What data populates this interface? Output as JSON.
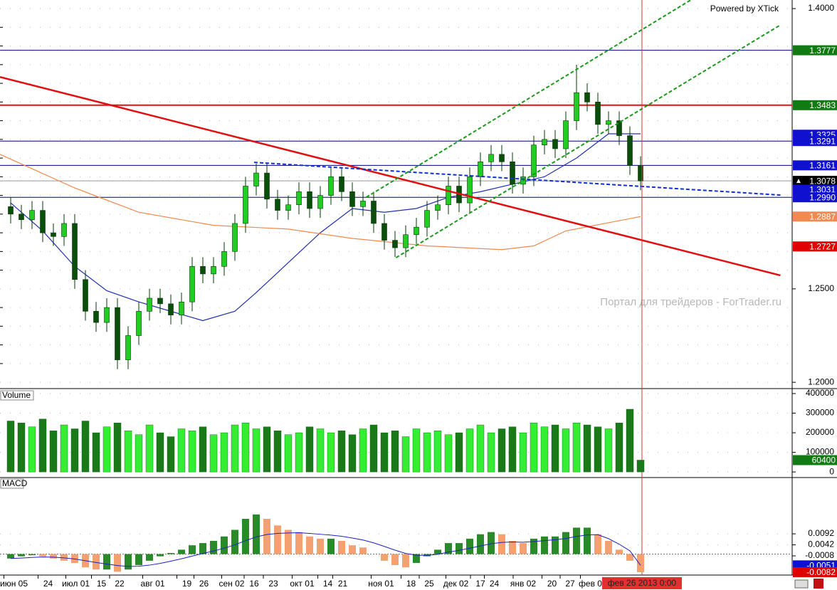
{
  "chart_data": [
    {
      "type": "candlestick",
      "panel": "price",
      "annotations": [
        "Powered by XTick",
        "Портал для трейдеров - ForTrader.ru"
      ],
      "ylim": [
        1.197,
        1.4046
      ],
      "yticks": [
        {
          "value": 1.2,
          "label": "1.2000"
        },
        {
          "value": 1.25,
          "label": "1.2500"
        },
        {
          "value": 1.4,
          "label": "1.4000"
        }
      ],
      "grid_ticks": [
        1.21,
        1.22,
        1.23,
        1.24,
        1.26,
        1.27,
        1.28,
        1.29,
        1.3,
        1.31,
        1.32,
        1.33,
        1.34,
        1.35,
        1.36,
        1.37,
        1.38,
        1.39
      ],
      "xticks": [
        {
          "value": 0.3,
          "label": "июн 05"
        },
        {
          "value": 3.5,
          "label": "24"
        },
        {
          "value": 6.1,
          "label": "июл 01"
        },
        {
          "value": 8.5,
          "label": "15"
        },
        {
          "value": 10.2,
          "label": "22"
        },
        {
          "value": 13.3,
          "label": "авг 01"
        },
        {
          "value": 16.5,
          "label": "19"
        },
        {
          "value": 18.1,
          "label": "26"
        },
        {
          "value": 20.7,
          "label": "сен 02"
        },
        {
          "value": 22.8,
          "label": "16"
        },
        {
          "value": 24.6,
          "label": "23"
        },
        {
          "value": 27.3,
          "label": "окт 01"
        },
        {
          "value": 29.7,
          "label": "14"
        },
        {
          "value": 31.1,
          "label": "21"
        },
        {
          "value": 34.7,
          "label": "ноя 01"
        },
        {
          "value": 37.5,
          "label": "18"
        },
        {
          "value": 39.2,
          "label": "25"
        },
        {
          "value": 41.7,
          "label": "дек 02"
        },
        {
          "value": 44,
          "label": "17"
        },
        {
          "value": 45.3,
          "label": "24"
        },
        {
          "value": 48,
          "label": "янв 02"
        },
        {
          "value": 50.7,
          "label": "20"
        },
        {
          "value": 52.4,
          "label": "27"
        },
        {
          "value": 54.3,
          "label": "фев 0"
        }
      ],
      "cursor": {
        "x": 59.13,
        "label": "фев 26 2013 0:00",
        "color": "#e03030"
      },
      "open": [
        1.294,
        1.29,
        1.287,
        1.292,
        1.28,
        1.278,
        1.285,
        1.255,
        1.238,
        1.232,
        1.24,
        1.212,
        1.225,
        1.238,
        1.245,
        1.242,
        1.236,
        1.243,
        1.262,
        1.258,
        1.262,
        1.27,
        1.285,
        1.305,
        1.312,
        1.298,
        1.292,
        1.295,
        1.302,
        1.293,
        1.3,
        1.31,
        1.302,
        1.294,
        1.297,
        1.285,
        1.276,
        1.272,
        1.279,
        1.283,
        1.292,
        1.295,
        1.305,
        1.296,
        1.31,
        1.318,
        1.322,
        1.318,
        1.306,
        1.31,
        1.327,
        1.33,
        1.325,
        1.34,
        1.355,
        1.35,
        1.338,
        1.34,
        1.332,
        1.316
      ],
      "high": [
        1.299,
        1.295,
        1.297,
        1.297,
        1.285,
        1.29,
        1.29,
        1.26,
        1.243,
        1.245,
        1.245,
        1.23,
        1.243,
        1.25,
        1.25,
        1.247,
        1.248,
        1.267,
        1.267,
        1.267,
        1.275,
        1.29,
        1.31,
        1.317,
        1.317,
        1.303,
        1.3,
        1.307,
        1.307,
        1.305,
        1.315,
        1.315,
        1.307,
        1.302,
        1.302,
        1.29,
        1.281,
        1.284,
        1.288,
        1.297,
        1.3,
        1.31,
        1.31,
        1.315,
        1.323,
        1.327,
        1.327,
        1.323,
        1.315,
        1.332,
        1.335,
        1.335,
        1.345,
        1.37,
        1.36,
        1.355,
        1.345,
        1.345,
        1.337,
        1.321
      ],
      "low": [
        1.285,
        1.282,
        1.282,
        1.275,
        1.273,
        1.273,
        1.25,
        1.233,
        1.227,
        1.227,
        1.207,
        1.207,
        1.22,
        1.233,
        1.237,
        1.231,
        1.231,
        1.238,
        1.253,
        1.253,
        1.257,
        1.265,
        1.28,
        1.3,
        1.293,
        1.287,
        1.287,
        1.29,
        1.288,
        1.288,
        1.295,
        1.297,
        1.289,
        1.289,
        1.28,
        1.271,
        1.267,
        1.267,
        1.274,
        1.278,
        1.287,
        1.29,
        1.291,
        1.291,
        1.305,
        1.313,
        1.313,
        1.301,
        1.301,
        1.305,
        1.322,
        1.32,
        1.32,
        1.335,
        1.345,
        1.333,
        1.333,
        1.327,
        1.311,
        1.3028
      ],
      "close": [
        1.29,
        1.287,
        1.292,
        1.28,
        1.278,
        1.285,
        1.255,
        1.238,
        1.232,
        1.24,
        1.212,
        1.225,
        1.238,
        1.245,
        1.242,
        1.236,
        1.243,
        1.262,
        1.258,
        1.262,
        1.27,
        1.285,
        1.305,
        1.312,
        1.298,
        1.292,
        1.295,
        1.302,
        1.293,
        1.3,
        1.31,
        1.302,
        1.294,
        1.297,
        1.285,
        1.276,
        1.272,
        1.279,
        1.283,
        1.292,
        1.295,
        1.305,
        1.296,
        1.31,
        1.318,
        1.322,
        1.318,
        1.306,
        1.31,
        1.327,
        1.33,
        1.325,
        1.34,
        1.355,
        1.35,
        1.338,
        1.34,
        1.332,
        1.316,
        1.3078
      ],
      "up_color": "#22cc22",
      "down_color": "#0b4d0b",
      "overlays": [
        {
          "color": "#2030b0",
          "x": [
            0,
            3,
            6,
            9,
            12,
            15,
            18,
            21,
            23,
            26,
            29,
            32,
            35,
            38,
            41,
            44,
            47,
            50,
            53,
            56,
            59
          ],
          "values": [
            1.296,
            1.281,
            1.262,
            1.249,
            1.243,
            1.238,
            1.233,
            1.238,
            1.248,
            1.264,
            1.28,
            1.293,
            1.291,
            1.293,
            1.299,
            1.302,
            1.306,
            1.31,
            1.32,
            1.333,
            1.333
          ]
        },
        {
          "color": "#f08a50",
          "x": [
            -1,
            6,
            12,
            19,
            26,
            32,
            39,
            46,
            49,
            52,
            59
          ],
          "values": [
            1.322,
            1.304,
            1.291,
            1.284,
            1.282,
            1.277,
            1.273,
            1.271,
            1.273,
            1.281,
            1.2887
          ]
        }
      ],
      "trendlines": [
        {
          "color": "#e01010",
          "dash": false,
          "x": [
            -1,
            72.1
          ],
          "values": [
            1.3634,
            1.2572
          ]
        },
        {
          "color": "#1030d0",
          "dash": true,
          "x": [
            22.8,
            72.1
          ],
          "values": [
            1.3177,
            1.3002
          ]
        },
        {
          "color": "#1a9a1a",
          "dash": true,
          "x": [
            36.1,
            72
          ],
          "values": [
            1.2667,
            1.3909
          ]
        },
        {
          "color": "#1a9a1a",
          "dash": true,
          "x": [
            33.3,
            63.7
          ],
          "values": [
            1.299,
            1.4046
          ]
        }
      ],
      "markers": [
        {
          "value": 1.3777,
          "color": "#127a12",
          "line_color": "#000080"
        },
        {
          "value": 1.3483,
          "color": "#127a12",
          "line_color": "#e01010"
        },
        {
          "value": 1.3325,
          "color": "#1010d0"
        },
        {
          "value": 1.3291,
          "color": "#1010d0",
          "line_color": "#000080"
        },
        {
          "value": 1.3161,
          "color": "#1010d0",
          "line_color": "#000080"
        },
        {
          "value": 1.3078,
          "color": "#000000",
          "line_color": "#999999"
        },
        {
          "value": 1.3031,
          "color": "#1010d0"
        },
        {
          "value": 1.299,
          "label": "1.2990",
          "color": "#1010d0",
          "line_color": "#000080"
        },
        {
          "value": 1.2887,
          "color": "#f08a50"
        },
        {
          "value": 1.2727,
          "color": "#e00000"
        }
      ]
    },
    {
      "type": "bar",
      "panel": "volume",
      "title": "Volume",
      "ylim": [
        -25000,
        418000
      ],
      "yticks": [
        0,
        100000,
        200000,
        300000,
        400000
      ],
      "values": [
        260000,
        250000,
        230000,
        270000,
        210000,
        240000,
        220000,
        260000,
        200000,
        230000,
        250000,
        210000,
        190000,
        240000,
        200000,
        180000,
        220000,
        210000,
        230000,
        190000,
        200000,
        240000,
        250000,
        220000,
        230000,
        210000,
        190000,
        200000,
        230000,
        220000,
        200000,
        210000,
        190000,
        220000,
        240000,
        200000,
        210000,
        180000,
        220000,
        200000,
        210000,
        190000,
        200000,
        220000,
        240000,
        200000,
        220000,
        230000,
        200000,
        250000,
        230000,
        240000,
        220000,
        250000,
        240000,
        230000,
        220000,
        250000,
        320000,
        60400
      ],
      "markers": [
        {
          "value": 60400,
          "color": "#127a12"
        }
      ]
    },
    {
      "type": "macd",
      "panel": "macd",
      "title": "MACD",
      "ylim": [
        -0.0095,
        0.0344
      ],
      "yticks": [
        -0.0008,
        0.0042,
        0.0092
      ],
      "up_color": "#2a8a2a",
      "down_color": "#f4a070",
      "signal_color": "#2020c0",
      "values": [
        -0.002,
        -0.001,
        -0.0005,
        -0.001,
        -0.002,
        -0.003,
        -0.004,
        -0.006,
        -0.007,
        -0.007,
        -0.008,
        -0.007,
        -0.005,
        -0.003,
        -0.001,
        0.0005,
        0.002,
        0.004,
        0.005,
        0.006,
        0.008,
        0.011,
        0.016,
        0.018,
        0.016,
        0.013,
        0.011,
        0.01,
        0.008,
        0.007,
        0.007,
        0.006,
        0.004,
        0.003,
        0.0,
        -0.003,
        -0.005,
        -0.006,
        -0.004,
        -0.001,
        0.002,
        0.005,
        0.005,
        0.007,
        0.009,
        0.01,
        0.009,
        0.006,
        0.005,
        0.007,
        0.008,
        0.008,
        0.01,
        0.012,
        0.012,
        0.009,
        0.006,
        0.002,
        -0.003,
        -0.0082
      ],
      "signal": [
        -0.002,
        -0.0018,
        -0.0015,
        -0.0013,
        -0.0014,
        -0.0017,
        -0.0022,
        -0.003,
        -0.0038,
        -0.0045,
        -0.0052,
        -0.0056,
        -0.0055,
        -0.005,
        -0.0042,
        -0.0032,
        -0.0021,
        -0.0009,
        0.0003,
        0.0014,
        0.0027,
        0.0042,
        0.0061,
        0.0078,
        0.0089,
        0.0094,
        0.0096,
        0.0097,
        0.0094,
        0.009,
        0.0086,
        0.0081,
        0.0073,
        0.0064,
        0.0051,
        0.0035,
        0.0018,
        0.0003,
        -0.0005,
        -0.0006,
        -0.0001,
        0.0009,
        0.0017,
        0.0027,
        0.0037,
        0.0047,
        0.0053,
        0.0055,
        0.0054,
        0.0057,
        0.0061,
        0.0065,
        0.0071,
        0.008,
        0.0087,
        0.0088,
        0.007,
        0.0045,
        0.0015,
        -0.0051
      ],
      "markers": [
        {
          "value": -0.0051,
          "color": "#1010d0"
        },
        {
          "value": -0.0082,
          "color": "#e00000"
        }
      ]
    }
  ]
}
